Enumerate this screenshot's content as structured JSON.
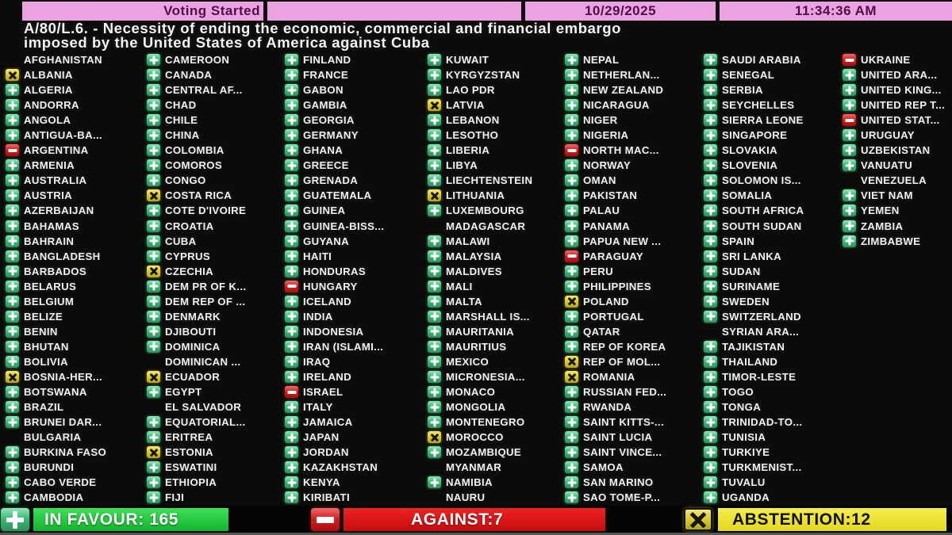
{
  "header": {
    "status_label": "Voting Started",
    "date": "10/29/2025",
    "time": "11:34:36 AM"
  },
  "title": {
    "line1": "A/80/L.6. - Necessity of ending the economic, commercial and financial embargo",
    "line2": "imposed by the United States of America against Cuba"
  },
  "vote_legend": {
    "Y": "in-favour",
    "N": "against",
    "A": "abstention",
    "X": "not-voting"
  },
  "votes": {
    "columns": [
      [
        {
          "n": "AFGHANISTAN",
          "v": "X"
        },
        {
          "n": "ALBANIA",
          "v": "A"
        },
        {
          "n": "ALGERIA",
          "v": "Y"
        },
        {
          "n": "ANDORRA",
          "v": "Y"
        },
        {
          "n": "ANGOLA",
          "v": "Y"
        },
        {
          "n": "ANTIGUA-BA...",
          "v": "Y"
        },
        {
          "n": "ARGENTINA",
          "v": "N"
        },
        {
          "n": "ARMENIA",
          "v": "Y"
        },
        {
          "n": "AUSTRALIA",
          "v": "Y"
        },
        {
          "n": "AUSTRIA",
          "v": "Y"
        },
        {
          "n": "AZERBAIJAN",
          "v": "Y"
        },
        {
          "n": "BAHAMAS",
          "v": "Y"
        },
        {
          "n": "BAHRAIN",
          "v": "Y"
        },
        {
          "n": "BANGLADESH",
          "v": "Y"
        },
        {
          "n": "BARBADOS",
          "v": "Y"
        },
        {
          "n": "BELARUS",
          "v": "Y"
        },
        {
          "n": "BELGIUM",
          "v": "Y"
        },
        {
          "n": "BELIZE",
          "v": "Y"
        },
        {
          "n": "BENIN",
          "v": "Y"
        },
        {
          "n": "BHUTAN",
          "v": "Y"
        },
        {
          "n": "BOLIVIA",
          "v": "Y"
        },
        {
          "n": "BOSNIA-HER...",
          "v": "A"
        },
        {
          "n": "BOTSWANA",
          "v": "Y"
        },
        {
          "n": "BRAZIL",
          "v": "Y"
        },
        {
          "n": "BRUNEI DAR...",
          "v": "Y"
        },
        {
          "n": "BULGARIA",
          "v": "X"
        },
        {
          "n": "BURKINA FASO",
          "v": "Y"
        },
        {
          "n": "BURUNDI",
          "v": "Y"
        },
        {
          "n": "CABO VERDE",
          "v": "Y"
        },
        {
          "n": "CAMBODIA",
          "v": "Y"
        }
      ],
      [
        {
          "n": "CAMEROON",
          "v": "Y"
        },
        {
          "n": "CANADA",
          "v": "Y"
        },
        {
          "n": "CENTRAL AF...",
          "v": "Y"
        },
        {
          "n": "CHAD",
          "v": "Y"
        },
        {
          "n": "CHILE",
          "v": "Y"
        },
        {
          "n": "CHINA",
          "v": "Y"
        },
        {
          "n": "COLOMBIA",
          "v": "Y"
        },
        {
          "n": "COMOROS",
          "v": "Y"
        },
        {
          "n": "CONGO",
          "v": "Y"
        },
        {
          "n": "COSTA RICA",
          "v": "A"
        },
        {
          "n": "COTE D'IVOIRE",
          "v": "Y"
        },
        {
          "n": "CROATIA",
          "v": "Y"
        },
        {
          "n": "CUBA",
          "v": "Y"
        },
        {
          "n": "CYPRUS",
          "v": "Y"
        },
        {
          "n": "CZECHIA",
          "v": "A"
        },
        {
          "n": "DEM PR OF K...",
          "v": "Y"
        },
        {
          "n": "DEM REP OF ...",
          "v": "Y"
        },
        {
          "n": "DENMARK",
          "v": "Y"
        },
        {
          "n": "DJIBOUTI",
          "v": "Y"
        },
        {
          "n": "DOMINICA",
          "v": "Y"
        },
        {
          "n": "DOMINICAN ...",
          "v": "X"
        },
        {
          "n": "ECUADOR",
          "v": "A"
        },
        {
          "n": "EGYPT",
          "v": "Y"
        },
        {
          "n": "EL SALVADOR",
          "v": "X"
        },
        {
          "n": "EQUATORIAL...",
          "v": "Y"
        },
        {
          "n": "ERITREA",
          "v": "Y"
        },
        {
          "n": "ESTONIA",
          "v": "A"
        },
        {
          "n": "ESWATINI",
          "v": "Y"
        },
        {
          "n": "ETHIOPIA",
          "v": "Y"
        },
        {
          "n": "FIJI",
          "v": "Y"
        }
      ],
      [
        {
          "n": "FINLAND",
          "v": "Y"
        },
        {
          "n": "FRANCE",
          "v": "Y"
        },
        {
          "n": "GABON",
          "v": "Y"
        },
        {
          "n": "GAMBIA",
          "v": "Y"
        },
        {
          "n": "GEORGIA",
          "v": "Y"
        },
        {
          "n": "GERMANY",
          "v": "Y"
        },
        {
          "n": "GHANA",
          "v": "Y"
        },
        {
          "n": "GREECE",
          "v": "Y"
        },
        {
          "n": "GRENADA",
          "v": "Y"
        },
        {
          "n": "GUATEMALA",
          "v": "Y"
        },
        {
          "n": "GUINEA",
          "v": "Y"
        },
        {
          "n": "GUINEA-BISS...",
          "v": "Y"
        },
        {
          "n": "GUYANA",
          "v": "Y"
        },
        {
          "n": "HAITI",
          "v": "Y"
        },
        {
          "n": "HONDURAS",
          "v": "Y"
        },
        {
          "n": "HUNGARY",
          "v": "N"
        },
        {
          "n": "ICELAND",
          "v": "Y"
        },
        {
          "n": "INDIA",
          "v": "Y"
        },
        {
          "n": "INDONESIA",
          "v": "Y"
        },
        {
          "n": "IRAN (ISLAMI...",
          "v": "Y"
        },
        {
          "n": "IRAQ",
          "v": "Y"
        },
        {
          "n": "IRELAND",
          "v": "Y"
        },
        {
          "n": "ISRAEL",
          "v": "N"
        },
        {
          "n": "ITALY",
          "v": "Y"
        },
        {
          "n": "JAMAICA",
          "v": "Y"
        },
        {
          "n": "JAPAN",
          "v": "Y"
        },
        {
          "n": "JORDAN",
          "v": "Y"
        },
        {
          "n": "KAZAKHSTAN",
          "v": "Y"
        },
        {
          "n": "KENYA",
          "v": "Y"
        },
        {
          "n": "KIRIBATI",
          "v": "Y"
        }
      ],
      [
        {
          "n": "KUWAIT",
          "v": "Y"
        },
        {
          "n": "KYRGYZSTAN",
          "v": "Y"
        },
        {
          "n": "LAO PDR",
          "v": "Y"
        },
        {
          "n": "LATVIA",
          "v": "A"
        },
        {
          "n": "LEBANON",
          "v": "Y"
        },
        {
          "n": "LESOTHO",
          "v": "Y"
        },
        {
          "n": "LIBERIA",
          "v": "Y"
        },
        {
          "n": "LIBYA",
          "v": "Y"
        },
        {
          "n": "LIECHTENSTEIN",
          "v": "Y"
        },
        {
          "n": "LITHUANIA",
          "v": "A"
        },
        {
          "n": "LUXEMBOURG",
          "v": "Y"
        },
        {
          "n": "MADAGASCAR",
          "v": "X"
        },
        {
          "n": "MALAWI",
          "v": "Y"
        },
        {
          "n": "MALAYSIA",
          "v": "Y"
        },
        {
          "n": "MALDIVES",
          "v": "Y"
        },
        {
          "n": "MALI",
          "v": "Y"
        },
        {
          "n": "MALTA",
          "v": "Y"
        },
        {
          "n": "MARSHALL IS...",
          "v": "Y"
        },
        {
          "n": "MAURITANIA",
          "v": "Y"
        },
        {
          "n": "MAURITIUS",
          "v": "Y"
        },
        {
          "n": "MEXICO",
          "v": "Y"
        },
        {
          "n": "MICRONESIA...",
          "v": "Y"
        },
        {
          "n": "MONACO",
          "v": "Y"
        },
        {
          "n": "MONGOLIA",
          "v": "Y"
        },
        {
          "n": "MONTENEGRO",
          "v": "Y"
        },
        {
          "n": "MOROCCO",
          "v": "A"
        },
        {
          "n": "MOZAMBIQUE",
          "v": "Y"
        },
        {
          "n": "MYANMAR",
          "v": "X"
        },
        {
          "n": "NAMIBIA",
          "v": "Y"
        },
        {
          "n": "NAURU",
          "v": "X"
        }
      ],
      [
        {
          "n": "NEPAL",
          "v": "Y"
        },
        {
          "n": "NETHERLAN...",
          "v": "Y"
        },
        {
          "n": "NEW ZEALAND",
          "v": "Y"
        },
        {
          "n": "NICARAGUA",
          "v": "Y"
        },
        {
          "n": "NIGER",
          "v": "Y"
        },
        {
          "n": "NIGERIA",
          "v": "Y"
        },
        {
          "n": "NORTH MAC...",
          "v": "N"
        },
        {
          "n": "NORWAY",
          "v": "Y"
        },
        {
          "n": "OMAN",
          "v": "Y"
        },
        {
          "n": "PAKISTAN",
          "v": "Y"
        },
        {
          "n": "PALAU",
          "v": "Y"
        },
        {
          "n": "PANAMA",
          "v": "Y"
        },
        {
          "n": "PAPUA NEW ...",
          "v": "Y"
        },
        {
          "n": "PARAGUAY",
          "v": "N"
        },
        {
          "n": "PERU",
          "v": "Y"
        },
        {
          "n": "PHILIPPINES",
          "v": "Y"
        },
        {
          "n": "POLAND",
          "v": "A"
        },
        {
          "n": "PORTUGAL",
          "v": "Y"
        },
        {
          "n": "QATAR",
          "v": "Y"
        },
        {
          "n": "REP OF KOREA",
          "v": "Y"
        },
        {
          "n": "REP OF MOL...",
          "v": "A"
        },
        {
          "n": "ROMANIA",
          "v": "A"
        },
        {
          "n": "RUSSIAN FED...",
          "v": "Y"
        },
        {
          "n": "RWANDA",
          "v": "Y"
        },
        {
          "n": "SAINT KITTS-...",
          "v": "Y"
        },
        {
          "n": "SAINT LUCIA",
          "v": "Y"
        },
        {
          "n": "SAINT VINCE...",
          "v": "Y"
        },
        {
          "n": "SAMOA",
          "v": "Y"
        },
        {
          "n": "SAN MARINO",
          "v": "Y"
        },
        {
          "n": "SAO TOME-P...",
          "v": "Y"
        }
      ],
      [
        {
          "n": "SAUDI ARABIA",
          "v": "Y"
        },
        {
          "n": "SENEGAL",
          "v": "Y"
        },
        {
          "n": "SERBIA",
          "v": "Y"
        },
        {
          "n": "SEYCHELLES",
          "v": "Y"
        },
        {
          "n": "SIERRA LEONE",
          "v": "Y"
        },
        {
          "n": "SINGAPORE",
          "v": "Y"
        },
        {
          "n": "SLOVAKIA",
          "v": "Y"
        },
        {
          "n": "SLOVENIA",
          "v": "Y"
        },
        {
          "n": "SOLOMON IS...",
          "v": "Y"
        },
        {
          "n": "SOMALIA",
          "v": "Y"
        },
        {
          "n": "SOUTH AFRICA",
          "v": "Y"
        },
        {
          "n": "SOUTH SUDAN",
          "v": "Y"
        },
        {
          "n": "SPAIN",
          "v": "Y"
        },
        {
          "n": "SRI LANKA",
          "v": "Y"
        },
        {
          "n": "SUDAN",
          "v": "Y"
        },
        {
          "n": "SURINAME",
          "v": "Y"
        },
        {
          "n": "SWEDEN",
          "v": "Y"
        },
        {
          "n": "SWITZERLAND",
          "v": "Y"
        },
        {
          "n": "SYRIAN ARA...",
          "v": "X"
        },
        {
          "n": "TAJIKISTAN",
          "v": "Y"
        },
        {
          "n": "THAILAND",
          "v": "Y"
        },
        {
          "n": "TIMOR-LESTE",
          "v": "Y"
        },
        {
          "n": "TOGO",
          "v": "Y"
        },
        {
          "n": "TONGA",
          "v": "Y"
        },
        {
          "n": "TRINIDAD-TO...",
          "v": "Y"
        },
        {
          "n": "TUNISIA",
          "v": "Y"
        },
        {
          "n": "TURKIYE",
          "v": "Y"
        },
        {
          "n": "TURKMENIST...",
          "v": "Y"
        },
        {
          "n": "TUVALU",
          "v": "Y"
        },
        {
          "n": "UGANDA",
          "v": "Y"
        }
      ],
      [
        {
          "n": "UKRAINE",
          "v": "N"
        },
        {
          "n": "UNITED ARA...",
          "v": "Y"
        },
        {
          "n": "UNITED KING...",
          "v": "Y"
        },
        {
          "n": "UNITED REP T...",
          "v": "Y"
        },
        {
          "n": "UNITED STAT...",
          "v": "N"
        },
        {
          "n": "URUGUAY",
          "v": "Y"
        },
        {
          "n": "UZBEKISTAN",
          "v": "Y"
        },
        {
          "n": "VANUATU",
          "v": "Y"
        },
        {
          "n": "VENEZUELA",
          "v": "X"
        },
        {
          "n": "VIET NAM",
          "v": "Y"
        },
        {
          "n": "YEMEN",
          "v": "Y"
        },
        {
          "n": "ZAMBIA",
          "v": "Y"
        },
        {
          "n": "ZIMBABWE",
          "v": "Y"
        }
      ]
    ]
  },
  "summary": {
    "in_favour": {
      "label": "IN FAVOUR: 165",
      "count": 165
    },
    "against": {
      "label": "AGAINST:7",
      "count": 7
    },
    "abstention": {
      "label": "ABSTENTION:12",
      "count": 12
    }
  },
  "colors": {
    "header_bg": "#eaa2e1",
    "header_text": "#4f0e45",
    "in_favour_icon": "#3fb878",
    "against_icon": "#cd1d1d",
    "abstention_icon": "#d6c62d",
    "in_favour_bar": "#1fca3c",
    "against_bar": "#e01414",
    "abstention_bar": "#f0e62e"
  },
  "icons": {
    "in_favour": "plus-cross",
    "against": "minus-bar",
    "abstention": "x-cross"
  }
}
